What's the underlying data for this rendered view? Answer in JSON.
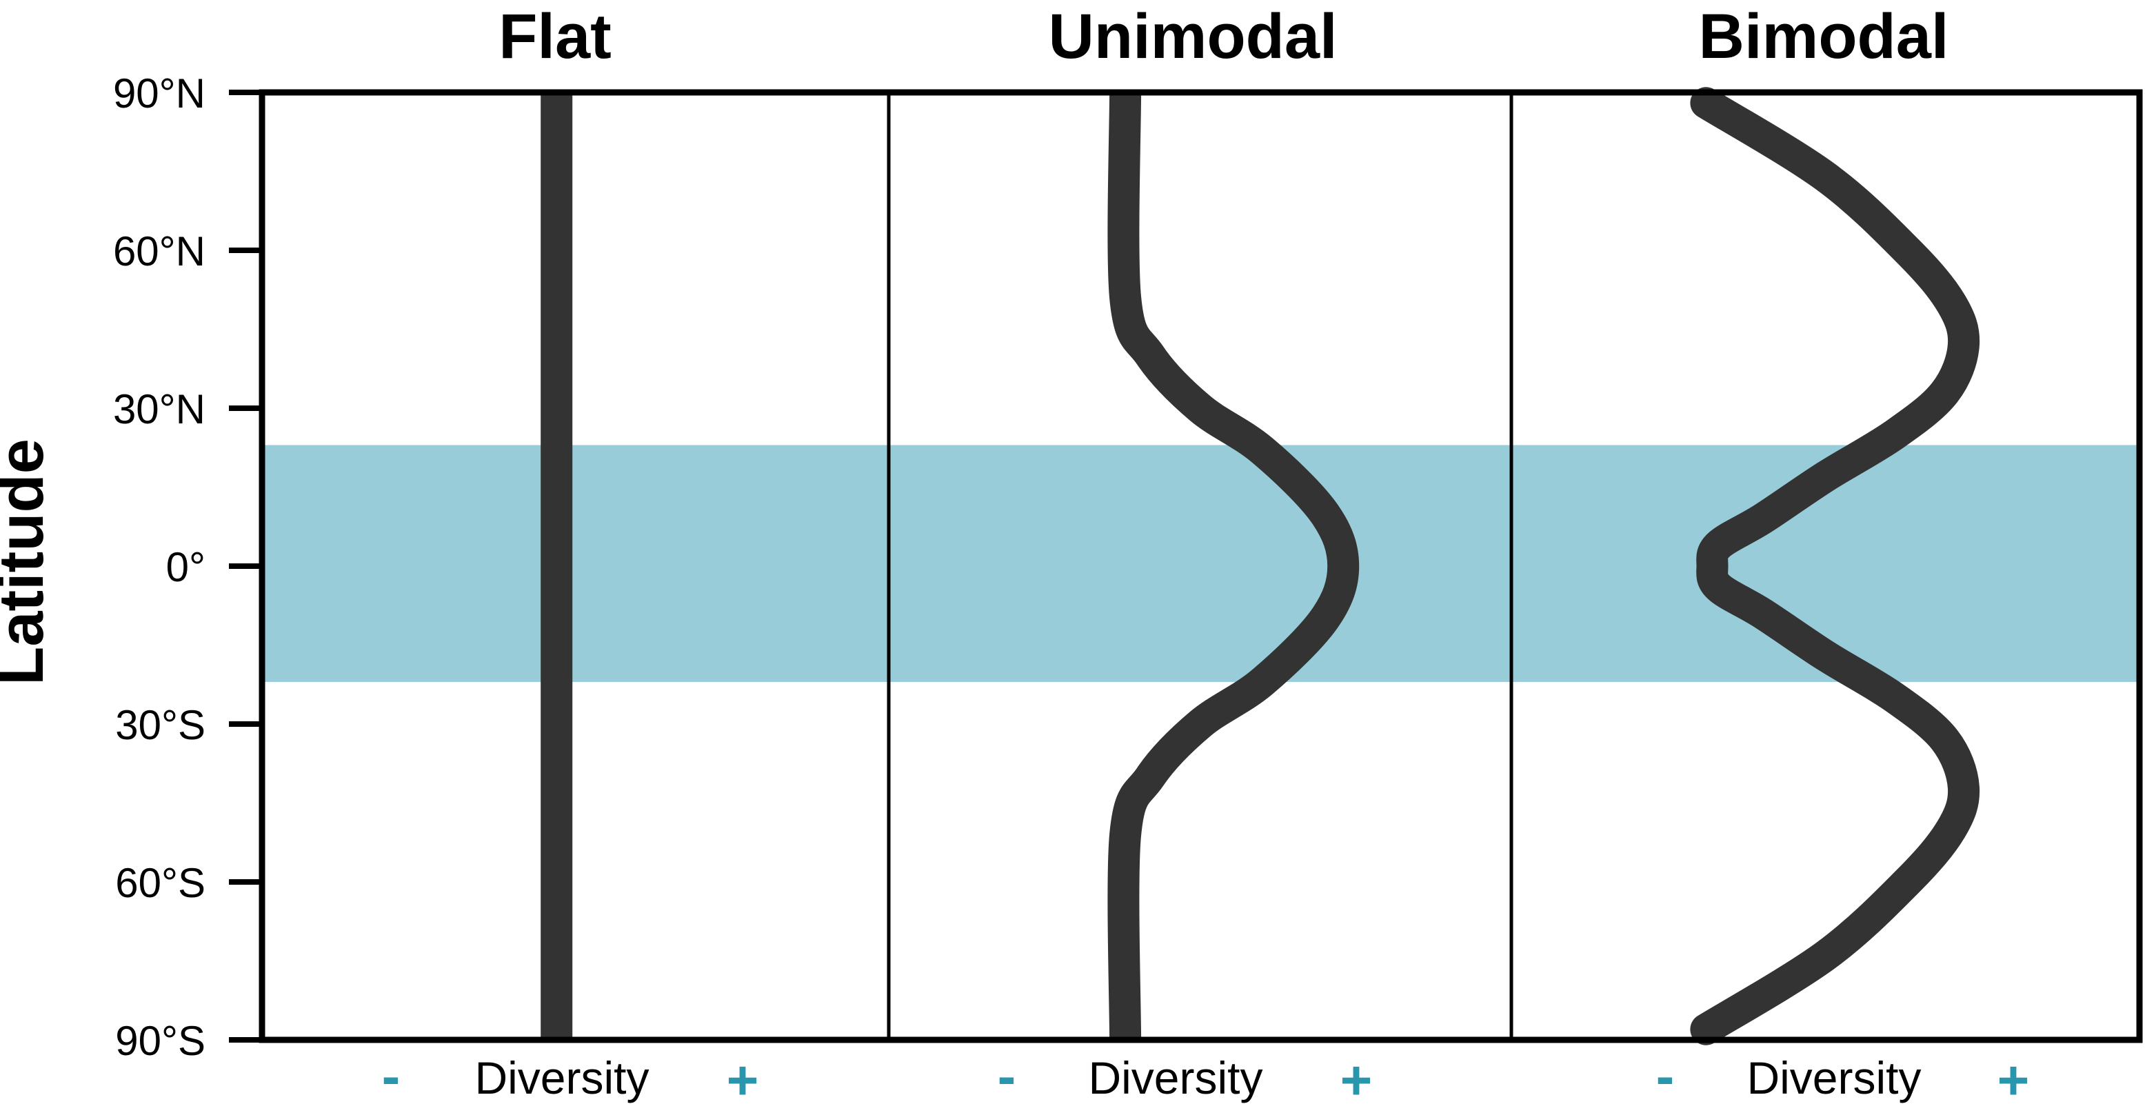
{
  "colors": {
    "tropics_band": "#98CCD8",
    "curve": "#333333",
    "frame": "#000000",
    "sign": "#2A96AE"
  },
  "panels": [
    {
      "title": "Flat"
    },
    {
      "title": "Unimodal"
    },
    {
      "title": "Bimodal"
    }
  ],
  "y_axis": {
    "label": "Latitude",
    "range": [
      -90,
      90
    ],
    "ticks": [
      {
        "value": 90,
        "label": "90°N"
      },
      {
        "value": 60,
        "label": "60°N"
      },
      {
        "value": 30,
        "label": "30°N"
      },
      {
        "value": 0,
        "label": "0°"
      },
      {
        "value": -30,
        "label": "30°S"
      },
      {
        "value": -60,
        "label": "60°S"
      },
      {
        "value": -90,
        "label": "90°S"
      }
    ]
  },
  "tropics_band": {
    "lat_min": -22,
    "lat_max": 23
  },
  "x_axis": {
    "minus": "-",
    "label": "Diversity",
    "plus": "+"
  },
  "chart_data": [
    {
      "type": "line",
      "title": "Flat",
      "xlabel": "Diversity",
      "ylabel": "Latitude",
      "xlim": [
        0,
        1
      ],
      "ylim": [
        -90,
        90
      ],
      "points": [
        [
          0.47,
          90
        ],
        [
          0.47,
          -90
        ]
      ]
    },
    {
      "type": "line",
      "title": "Unimodal",
      "xlabel": "Diversity",
      "ylabel": "Latitude",
      "xlim": [
        0,
        1
      ],
      "ylim": [
        -90,
        90
      ],
      "points": [
        [
          0.38,
          90
        ],
        [
          0.38,
          51
        ],
        [
          0.42,
          40
        ],
        [
          0.5,
          30
        ],
        [
          0.6,
          22
        ],
        [
          0.7,
          10
        ],
        [
          0.73,
          0
        ],
        [
          0.7,
          -10
        ],
        [
          0.6,
          -22
        ],
        [
          0.5,
          -30
        ],
        [
          0.42,
          -40
        ],
        [
          0.38,
          -51
        ],
        [
          0.38,
          -90
        ]
      ]
    },
    {
      "type": "line",
      "title": "Bimodal",
      "xlabel": "Diversity",
      "ylabel": "Latitude",
      "xlim": [
        0,
        1
      ],
      "ylim": [
        -90,
        90
      ],
      "points": [
        [
          0.31,
          88
        ],
        [
          0.5,
          74
        ],
        [
          0.63,
          60
        ],
        [
          0.7,
          50
        ],
        [
          0.72,
          42
        ],
        [
          0.69,
          33
        ],
        [
          0.61,
          25
        ],
        [
          0.5,
          17
        ],
        [
          0.4,
          9
        ],
        [
          0.33,
          4
        ],
        [
          0.32,
          0
        ],
        [
          0.33,
          -4
        ],
        [
          0.4,
          -9
        ],
        [
          0.5,
          -17
        ],
        [
          0.61,
          -25
        ],
        [
          0.69,
          -33
        ],
        [
          0.72,
          -42
        ],
        [
          0.7,
          -50
        ],
        [
          0.63,
          -60
        ],
        [
          0.5,
          -74
        ],
        [
          0.31,
          -88
        ]
      ]
    }
  ]
}
